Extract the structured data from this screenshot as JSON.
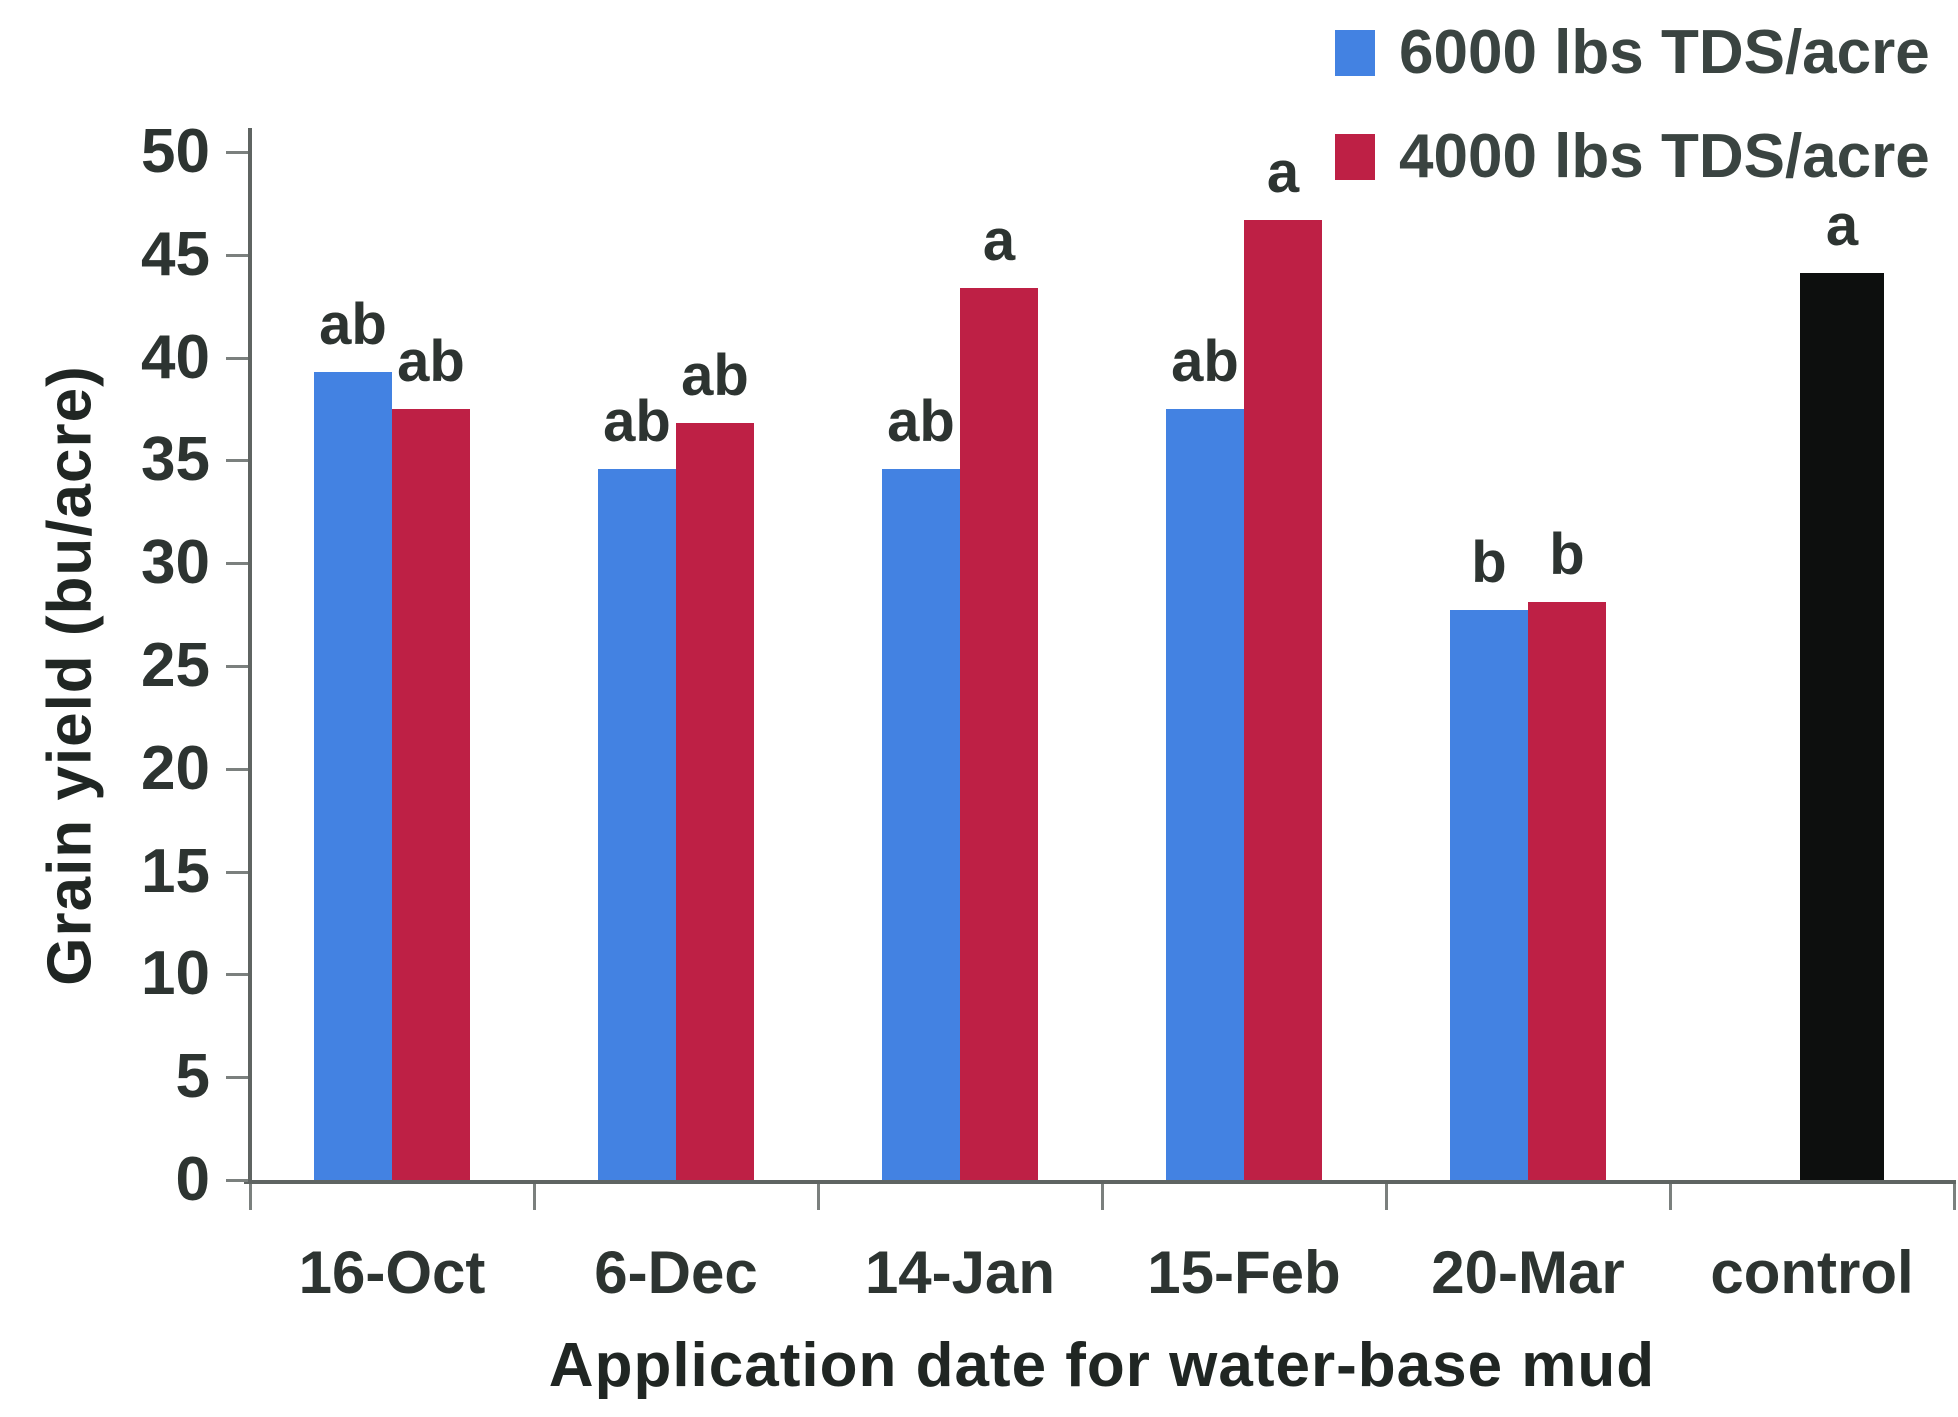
{
  "chart_data": {
    "type": "bar",
    "title": "",
    "categories": [
      "16-Oct",
      "6-Dec",
      "14-Jan",
      "15-Feb",
      "20-Mar",
      "control"
    ],
    "series": [
      {
        "name": "6000 lbs TDS/acre",
        "color": "#4382E2",
        "in_legend": true,
        "values": [
          39.3,
          34.6,
          34.6,
          37.5,
          27.7,
          null
        ],
        "sig_labels": [
          "ab",
          "ab",
          "ab",
          "ab",
          "b",
          null
        ]
      },
      {
        "name": "4000 lbs TDS/acre",
        "color": "#BE2045",
        "in_legend": true,
        "values": [
          37.5,
          36.8,
          43.4,
          46.7,
          28.1,
          null
        ],
        "sig_labels": [
          "ab",
          "ab",
          "a",
          "a",
          "b",
          null
        ]
      },
      {
        "name": "control",
        "color": "#0d0f0e",
        "in_legend": false,
        "values": [
          null,
          null,
          null,
          null,
          null,
          44.1
        ],
        "sig_labels": [
          null,
          null,
          null,
          null,
          null,
          "a"
        ]
      }
    ],
    "xlabel": "Application date for water-base mud",
    "ylabel": "Grain yield (bu/acre)",
    "ylim": [
      0,
      50
    ],
    "ytick_step": 5,
    "ytick_labels": [
      "0",
      "5",
      "10",
      "15",
      "20",
      "25",
      "30",
      "35",
      "40",
      "45",
      "50"
    ],
    "legend_position": "top-right",
    "grid": false
  }
}
